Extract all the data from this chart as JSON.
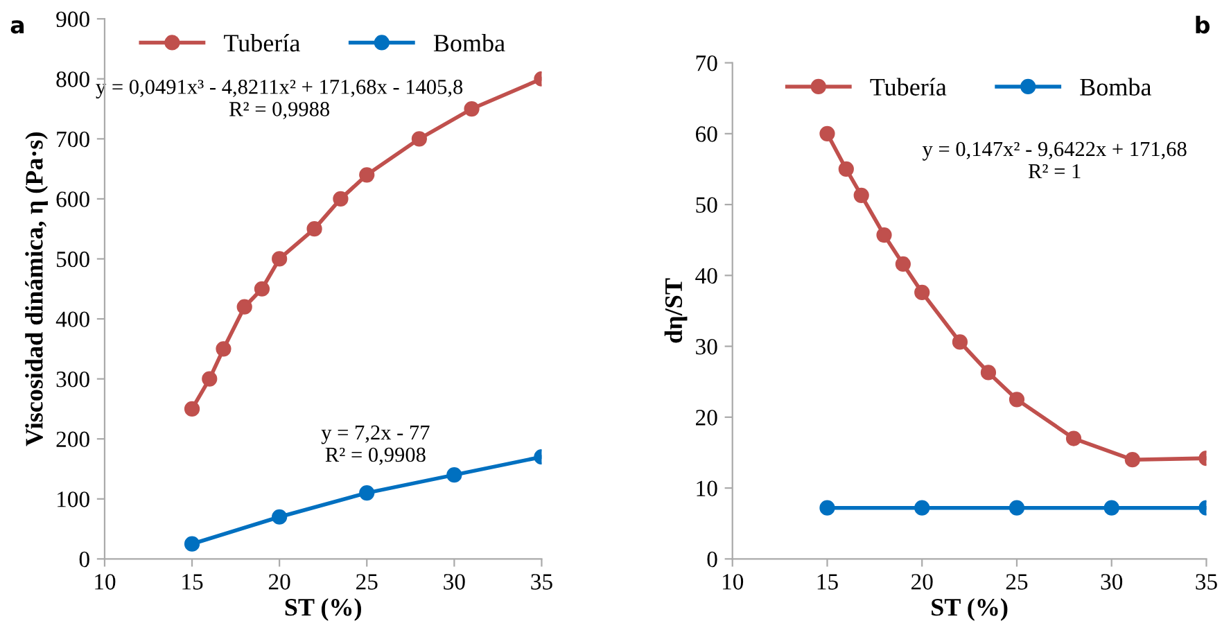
{
  "chart_data": [
    {
      "type": "line",
      "title": "a",
      "xlabel": "ST (%)",
      "ylabel": "Viscosidad dinámica, η (Pa·s)",
      "xlim": [
        10,
        35
      ],
      "xticks": [
        10,
        15,
        20,
        25,
        30,
        35
      ],
      "ylim": [
        0,
        900
      ],
      "yticks": [
        0,
        100,
        200,
        300,
        400,
        500,
        600,
        700,
        800,
        900
      ],
      "grid": false,
      "legend": "top",
      "marker": "circle",
      "line_style": "solid",
      "annotations": [
        "y = 0,0491x³ - 4,8211x² + 171,68x - 1405,8\nR² = 0,9988",
        "y = 7,2x - 77\nR² = 0,9908"
      ],
      "series": [
        {
          "name": "Tubería",
          "color": "#c0504d",
          "x": [
            15,
            16,
            16.8,
            18,
            19,
            20,
            22,
            23.5,
            25,
            28,
            31,
            35
          ],
          "values": [
            250,
            300,
            350,
            420,
            450,
            500,
            550,
            600,
            640,
            700,
            750,
            800
          ]
        },
        {
          "name": "Bomba",
          "color": "#0070c0",
          "x": [
            15,
            20,
            25,
            30,
            35
          ],
          "values": [
            25,
            70,
            110,
            140,
            170
          ]
        }
      ]
    },
    {
      "type": "line",
      "title": "b",
      "xlabel": "ST (%)",
      "ylabel": "dη/ST",
      "xlim": [
        10,
        35
      ],
      "xticks": [
        10,
        15,
        20,
        25,
        30,
        35
      ],
      "ylim": [
        0,
        70
      ],
      "yticks": [
        0,
        10,
        20,
        30,
        40,
        50,
        60,
        70
      ],
      "grid": false,
      "legend": "top",
      "marker": "circle",
      "line_style": "solid",
      "annotations": [
        "y = 0,147x² - 9,6422x + 171,68\nR² = 1"
      ],
      "series": [
        {
          "name": "Tubería",
          "color": "#c0504d",
          "x": [
            15,
            16,
            16.8,
            18,
            19,
            20,
            22,
            23.5,
            25,
            28,
            31.1,
            35
          ],
          "values": [
            60,
            55,
            51.3,
            45.7,
            41.6,
            37.6,
            30.6,
            26.3,
            22.5,
            17,
            14,
            14.2
          ]
        },
        {
          "name": "Bomba",
          "color": "#0070c0",
          "x": [
            15,
            20,
            25,
            30,
            35
          ],
          "values": [
            7.2,
            7.2,
            7.2,
            7.2,
            7.2
          ]
        }
      ]
    }
  ]
}
